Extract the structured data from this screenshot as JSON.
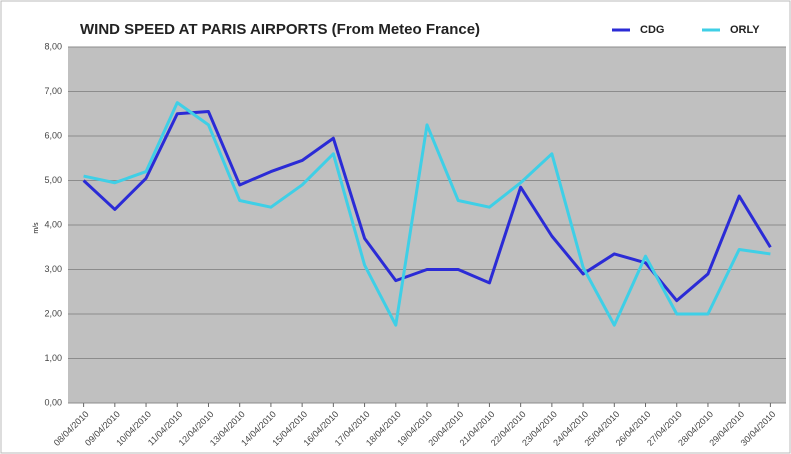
{
  "chart_data": {
    "type": "line",
    "title": "WIND SPEED AT PARIS AIRPORTS (From Meteo France)",
    "y_label": "m/s",
    "categories": [
      "08/04/2010",
      "09/04/2010",
      "10/04/2010",
      "11/04/2010",
      "12/04/2010",
      "13/04/2010",
      "14/04/2010",
      "15/04/2010",
      "16/04/2010",
      "17/04/2010",
      "18/04/2010",
      "19/04/2010",
      "20/04/2010",
      "21/04/2010",
      "22/04/2010",
      "23/04/2010",
      "24/04/2010",
      "25/04/2010",
      "26/04/2010",
      "27/04/2010",
      "28/04/2010",
      "29/04/2010",
      "30/04/2010"
    ],
    "series": [
      {
        "name": "CDG",
        "color": "#2b2bd6",
        "values": [
          5.0,
          4.35,
          5.05,
          6.5,
          6.55,
          4.9,
          5.2,
          5.45,
          5.95,
          3.7,
          2.75,
          3.0,
          3.0,
          2.7,
          4.85,
          3.75,
          2.9,
          3.35,
          3.15,
          2.3,
          2.9,
          4.65,
          3.5
        ]
      },
      {
        "name": "ORLY",
        "color": "#3fcfe6",
        "values": [
          5.1,
          4.95,
          5.2,
          6.75,
          6.25,
          4.55,
          4.4,
          4.9,
          5.6,
          3.1,
          1.75,
          6.25,
          4.55,
          4.4,
          4.95,
          5.6,
          3.05,
          1.75,
          3.3,
          2.0,
          2.0,
          3.45,
          3.35
        ]
      }
    ],
    "ylim": [
      0,
      8
    ],
    "yticks": [
      {
        "value": 0,
        "label": "0,00"
      },
      {
        "value": 1,
        "label": "1,00"
      },
      {
        "value": 2,
        "label": "2,00"
      },
      {
        "value": 3,
        "label": "3,00"
      },
      {
        "value": 4,
        "label": "4,00"
      },
      {
        "value": 5,
        "label": "5,00"
      },
      {
        "value": 6,
        "label": "6,00"
      },
      {
        "value": 7,
        "label": "7,00"
      },
      {
        "value": 8,
        "label": "8,00"
      }
    ],
    "grid": true,
    "legend": "top-right"
  }
}
